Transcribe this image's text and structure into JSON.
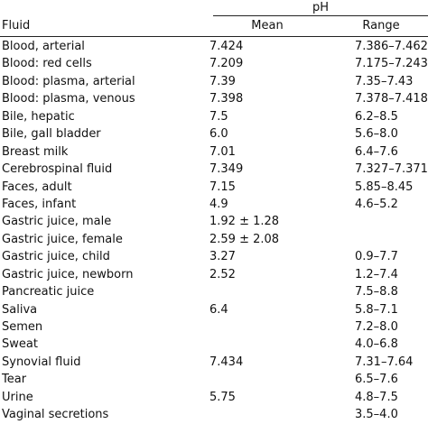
{
  "header": {
    "group_label": "pH",
    "col_fluid": "Fluid",
    "col_mean": "Mean",
    "col_range": "Range"
  },
  "rows": [
    {
      "fluid": "Blood, arterial",
      "mean": "7.424",
      "range": "7.386–7.462"
    },
    {
      "fluid": "Blood: red cells",
      "mean": "7.209",
      "range": "7.175–7.243"
    },
    {
      "fluid": "Blood: plasma, arterial",
      "mean": "7.39",
      "range": "7.35–7.43"
    },
    {
      "fluid": "Blood: plasma, venous",
      "mean": "7.398",
      "range": "7.378–7.418"
    },
    {
      "fluid": "Bile, hepatic",
      "mean": "7.5",
      "range": "6.2–8.5"
    },
    {
      "fluid": "Bile, gall bladder",
      "mean": "6.0",
      "range": "5.6–8.0"
    },
    {
      "fluid": "Breast milk",
      "mean": "7.01",
      "range": "6.4–7.6"
    },
    {
      "fluid": "Cerebrospinal fluid",
      "mean": "7.349",
      "range": "7.327–7.371"
    },
    {
      "fluid": "Faces, adult",
      "mean": "7.15",
      "range": "5.85–8.45"
    },
    {
      "fluid": "Faces, infant",
      "mean": "4.9",
      "range": "4.6–5.2"
    },
    {
      "fluid": "Gastric juice, male",
      "mean": "1.92 ± 1.28",
      "range": ""
    },
    {
      "fluid": "Gastric juice, female",
      "mean": "2.59 ± 2.08",
      "range": ""
    },
    {
      "fluid": "Gastric juice, child",
      "mean": "3.27",
      "range": "0.9–7.7"
    },
    {
      "fluid": "Gastric juice, newborn",
      "mean": "2.52",
      "range": "1.2–7.4"
    },
    {
      "fluid": "Pancreatic juice",
      "mean": "",
      "range": "7.5–8.8"
    },
    {
      "fluid": "Saliva",
      "mean": "6.4",
      "range": "5.8–7.1"
    },
    {
      "fluid": "Semen",
      "mean": "",
      "range": "7.2–8.0"
    },
    {
      "fluid": "Sweat",
      "mean": "",
      "range": "4.0–6.8"
    },
    {
      "fluid": "Synovial fluid",
      "mean": "7.434",
      "range": "7.31–7.64"
    },
    {
      "fluid": "Tear",
      "mean": "",
      "range": "6.5–7.6"
    },
    {
      "fluid": "Urine",
      "mean": "5.75",
      "range": "4.8–7.5"
    },
    {
      "fluid": "Vaginal secretions",
      "mean": "",
      "range": "3.5–4.0"
    }
  ]
}
